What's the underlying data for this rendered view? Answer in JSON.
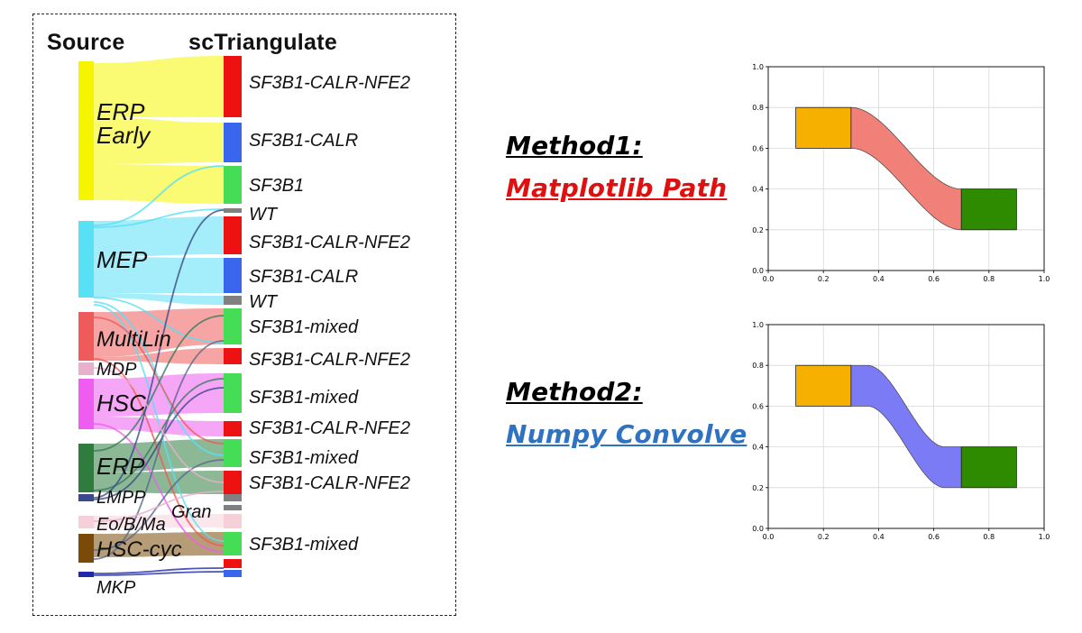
{
  "sankey": {
    "source_header": "Source",
    "target_header": "scTriangulate",
    "sources": [
      {
        "label": "ERP\nEarly",
        "color": "#f5f500"
      },
      {
        "label": "MEP",
        "color": "#58e0f5"
      },
      {
        "label": "MultiLin",
        "color": "#ef5a5a"
      },
      {
        "label": "MDP",
        "color": "#e8b0cc"
      },
      {
        "label": "HSC",
        "color": "#ef5cf0"
      },
      {
        "label": "ERP",
        "color": "#2e7d3f"
      },
      {
        "label": "LMPP",
        "color": "#3a4a8a"
      },
      {
        "label": "Eo/B/Ma",
        "color": "#f5d0d8"
      },
      {
        "label": "HSC-cyc",
        "color": "#7a4a08"
      },
      {
        "label": "MKP",
        "color": "#1f2aa8"
      }
    ],
    "targets": [
      {
        "label": "SF3B1-CALR-NFE2",
        "color": "#ee1111"
      },
      {
        "label": "SF3B1-CALR",
        "color": "#3a66ee"
      },
      {
        "label": "SF3B1",
        "color": "#44dd55"
      },
      {
        "label": "WT",
        "color": "#808080"
      },
      {
        "label": "SF3B1-CALR-NFE2",
        "color": "#ee1111"
      },
      {
        "label": "SF3B1-CALR",
        "color": "#3a66ee"
      },
      {
        "label": "WT",
        "color": "#808080"
      },
      {
        "label": "SF3B1-mixed",
        "color": "#44dd55"
      },
      {
        "label": "SF3B1-CALR-NFE2",
        "color": "#ee1111"
      },
      {
        "label": "SF3B1-mixed",
        "color": "#44dd55"
      },
      {
        "label": "SF3B1-CALR-NFE2",
        "color": "#ee1111"
      },
      {
        "label": "SF3B1-mixed",
        "color": "#44dd55"
      },
      {
        "label": "SF3B1-CALR-NFE2",
        "color": "#ee1111"
      },
      {
        "label": "SF3B1-mixed",
        "color": "#44dd55"
      }
    ],
    "extra_label": "Gran"
  },
  "methods": [
    {
      "line1": "Method1:",
      "line2": "Matplotlib Path",
      "line1_color": "#000000",
      "line2_color": "#e01010"
    },
    {
      "line1": "Method2:",
      "line2": "Numpy Convolve",
      "line1_color": "#000000",
      "line2_color": "#2e72c0"
    }
  ],
  "chart_data": [
    {
      "type": "sankey-flow",
      "title": "",
      "xlim": [
        0.0,
        1.0
      ],
      "ylim": [
        0.0,
        1.0
      ],
      "xticks": [
        "0.0",
        "0.2",
        "0.4",
        "0.6",
        "0.8",
        "1.0"
      ],
      "yticks": [
        "0.0",
        "0.2",
        "0.4",
        "0.6",
        "0.8",
        "1.0"
      ],
      "grid": true,
      "boxes": [
        {
          "x": [
            0.1,
            0.3
          ],
          "y": [
            0.6,
            0.8
          ],
          "color": "#f5b000"
        },
        {
          "x": [
            0.7,
            0.9
          ],
          "y": [
            0.2,
            0.4
          ],
          "color": "#2e8b00"
        }
      ],
      "flow": {
        "method": "matplotlib-path",
        "from_x": 0.3,
        "to_x": 0.7,
        "top": [
          0.8,
          0.4
        ],
        "bottom": [
          0.6,
          0.2
        ],
        "color": "#f08078"
      }
    },
    {
      "type": "sankey-flow",
      "title": "",
      "xlim": [
        0.0,
        1.0
      ],
      "ylim": [
        0.0,
        1.0
      ],
      "xticks": [
        "0.0",
        "0.2",
        "0.4",
        "0.6",
        "0.8",
        "1.0"
      ],
      "yticks": [
        "0.0",
        "0.2",
        "0.4",
        "0.6",
        "0.8",
        "1.0"
      ],
      "grid": true,
      "boxes": [
        {
          "x": [
            0.1,
            0.3
          ],
          "y": [
            0.6,
            0.8
          ],
          "color": "#f5b000"
        },
        {
          "x": [
            0.7,
            0.9
          ],
          "y": [
            0.2,
            0.4
          ],
          "color": "#2e8b00"
        }
      ],
      "flow": {
        "method": "numpy-convolve",
        "from_x": 0.3,
        "to_x": 0.7,
        "top": [
          0.8,
          0.4
        ],
        "bottom": [
          0.6,
          0.2
        ],
        "color": "#7b7bf5"
      }
    }
  ]
}
